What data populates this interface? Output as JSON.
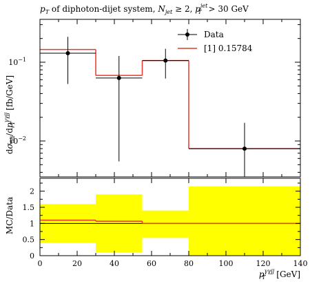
{
  "chart_data": {
    "type": "histogram-ratio",
    "title_parts": {
      "main": "p_T of diphoton-dijet system, N_jet ≥ 2, p_T^jet > 30 GeV",
      "p_sym": "p",
      "p_sub": "T",
      "seg1": " of diphoton-dijet system, ",
      "njet_N": "N",
      "njet_sub": "jet",
      "seg2": " ≥ 2, ",
      "pt_sup": "jet",
      "seg3": " > 30 GeV"
    },
    "top_panel": {
      "ylabel": "dσ_fid/dp_T^γγjj [fb/GeV]",
      "ylabel_parts": {
        "d": "d",
        "sigma": "σ",
        "fid": "fid",
        "slash": "/d",
        "p": "p",
        "T": "T",
        "ggjj": "γγjj",
        "unit": " [fb/GeV]"
      },
      "yscale": "log",
      "ylim": [
        0.0035,
        0.35
      ],
      "yticks": [
        {
          "value": 0.1,
          "label": "10",
          "exp": "−1"
        },
        {
          "value": 0.01,
          "label": "10",
          "exp": "−2"
        }
      ],
      "legend": {
        "placement": "top-right",
        "data_label": "Data",
        "mc_label": "[1] 0.15784"
      },
      "bins": [
        0,
        30,
        55,
        80,
        140
      ],
      "mc_values": [
        0.145,
        0.068,
        0.105,
        0.008
      ],
      "data": [
        {
          "x": 15,
          "y": 0.13,
          "ylo": 0.053,
          "yhi": 0.21
        },
        {
          "x": 42.5,
          "y": 0.063,
          "ylo": 0.0055,
          "yhi": 0.12
        },
        {
          "x": 67.5,
          "y": 0.105,
          "ylo": 0.062,
          "yhi": 0.148
        },
        {
          "x": 110,
          "y": 0.008,
          "ylo": 0.0035,
          "yhi": 0.017
        }
      ]
    },
    "ratio_panel": {
      "ylabel": "MC/Data",
      "ylim": [
        0,
        2.4
      ],
      "yticks": [
        {
          "value": 0,
          "label": "0"
        },
        {
          "value": 0.5,
          "label": "0.5"
        },
        {
          "value": 1,
          "label": "1"
        },
        {
          "value": 1.5,
          "label": "1.5"
        },
        {
          "value": 2,
          "label": "2"
        }
      ],
      "band": [
        {
          "lo": 0.4,
          "hi": 1.6
        },
        {
          "lo": 0.1,
          "hi": 1.9
        },
        {
          "lo": 0.55,
          "hi": 1.4
        },
        {
          "lo": 0,
          "hi": 2.15
        }
      ],
      "ratio_values": [
        1.1,
        1.07,
        1.0,
        1.0
      ]
    },
    "xaxis": {
      "xlim": [
        0,
        140
      ],
      "ticks": [
        0,
        20,
        40,
        60,
        80,
        100,
        120,
        140
      ],
      "label_parts": {
        "p": "p",
        "T": "T",
        "ggjj": "γγjj",
        "unit": " [GeV]"
      }
    },
    "colors": {
      "mc_line": "#e8372a",
      "data_marker": "#000000",
      "band": "#ffff00",
      "frame": "#000000"
    }
  }
}
